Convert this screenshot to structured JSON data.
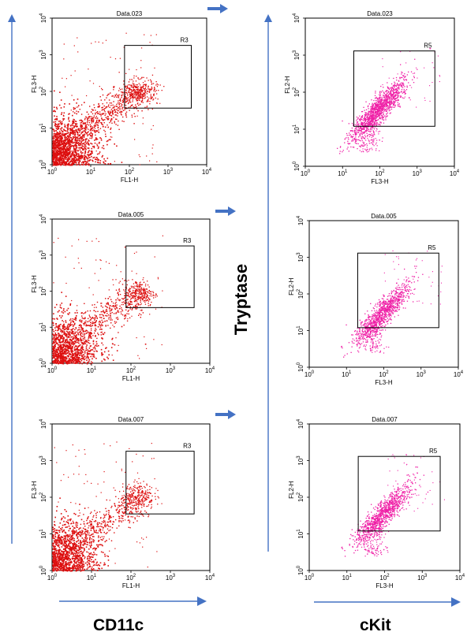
{
  "colors": {
    "left_dots": "#dd0f0f",
    "right_dots": "#ef1fa6",
    "arrows": "#4472c4",
    "frame": "#000000"
  },
  "axis_titles": {
    "left_bottom": "CD11c",
    "right_bottom": "cKit",
    "middle_vertical": "Tryptase"
  },
  "chart_data": [
    {
      "type": "scatter",
      "panel": "left",
      "row": 0,
      "title": "Data.023",
      "xlabel": "FL1-H",
      "ylabel": "FL3-H",
      "xscale": "log",
      "yscale": "log",
      "xlim": [
        1,
        10000
      ],
      "ylim": [
        1,
        10000
      ],
      "tick_exponents": [
        0,
        1,
        2,
        3,
        4
      ],
      "gate": {
        "label": "R3",
        "x": [
          75,
          4000
        ],
        "y": [
          35,
          1800
        ]
      },
      "cloud": {
        "x_center": 180,
        "y_center": 100,
        "x_spread": 0.45,
        "y_spread": 0.28
      },
      "diagonal": {
        "x0": 1,
        "y0": 3,
        "x1": 150,
        "y1": 80
      },
      "density": "high"
    },
    {
      "type": "scatter",
      "panel": "right",
      "row": 0,
      "title": "Data.023",
      "xlabel": "FL3-H",
      "ylabel": "FL2-H",
      "xscale": "log",
      "yscale": "log",
      "xlim": [
        1,
        10000
      ],
      "ylim": [
        1,
        10000
      ],
      "tick_exponents": [
        0,
        1,
        2,
        3,
        4
      ],
      "gate": {
        "label": "R5",
        "x": [
          20,
          3000
        ],
        "y": [
          12,
          1300
        ]
      },
      "cloud": {
        "x_center": 90,
        "y_center": 35,
        "slope": 1.1
      },
      "density": "high"
    },
    {
      "type": "scatter",
      "panel": "left",
      "row": 1,
      "title": "Data.005",
      "xlabel": "FL1-H",
      "ylabel": "FL3-H",
      "xscale": "log",
      "yscale": "log",
      "xlim": [
        1,
        10000
      ],
      "ylim": [
        1,
        10000
      ],
      "tick_exponents": [
        0,
        1,
        2,
        3,
        4
      ],
      "gate": {
        "label": "R3",
        "x": [
          75,
          4000
        ],
        "y": [
          35,
          1800
        ]
      },
      "cloud": {
        "x_center": 160,
        "y_center": 90,
        "x_spread": 0.4,
        "y_spread": 0.3
      },
      "diagonal": {
        "x0": 1,
        "y0": 3,
        "x1": 150,
        "y1": 70
      },
      "density": "medium"
    },
    {
      "type": "scatter",
      "panel": "right",
      "row": 1,
      "title": "Data.005",
      "xlabel": "FL3-H",
      "ylabel": "FL2-H",
      "xscale": "log",
      "yscale": "log",
      "xlim": [
        1,
        10000
      ],
      "ylim": [
        1,
        10000
      ],
      "tick_exponents": [
        0,
        1,
        2,
        3,
        4
      ],
      "gate": {
        "label": "R5",
        "x": [
          20,
          3000
        ],
        "y": [
          12,
          1300
        ]
      },
      "cloud": {
        "x_center": 90,
        "y_center": 30,
        "slope": 1.1
      },
      "density": "medium"
    },
    {
      "type": "scatter",
      "panel": "left",
      "row": 2,
      "title": "Data.007",
      "xlabel": "FL1-H",
      "ylabel": "FL3-H",
      "xscale": "log",
      "yscale": "log",
      "xlim": [
        1,
        10000
      ],
      "ylim": [
        1,
        10000
      ],
      "tick_exponents": [
        0,
        1,
        2,
        3,
        4
      ],
      "gate": {
        "label": "R3",
        "x": [
          75,
          4000
        ],
        "y": [
          35,
          1800
        ]
      },
      "cloud": {
        "x_center": 150,
        "y_center": 110,
        "x_spread": 0.4,
        "y_spread": 0.3
      },
      "diagonal": {
        "x0": 1,
        "y0": 3,
        "x1": 140,
        "y1": 75
      },
      "density": "medium"
    },
    {
      "type": "scatter",
      "panel": "right",
      "row": 2,
      "title": "Data.007",
      "xlabel": "FL3-H",
      "ylabel": "FL2-H",
      "xscale": "log",
      "yscale": "log",
      "xlim": [
        1,
        10000
      ],
      "ylim": [
        1,
        10000
      ],
      "tick_exponents": [
        0,
        1,
        2,
        3,
        4
      ],
      "gate": {
        "label": "R5",
        "x": [
          20,
          3000
        ],
        "y": [
          12,
          1300
        ]
      },
      "cloud": {
        "x_center": 90,
        "y_center": 35,
        "slope": 1.1
      },
      "density": "medium"
    }
  ]
}
